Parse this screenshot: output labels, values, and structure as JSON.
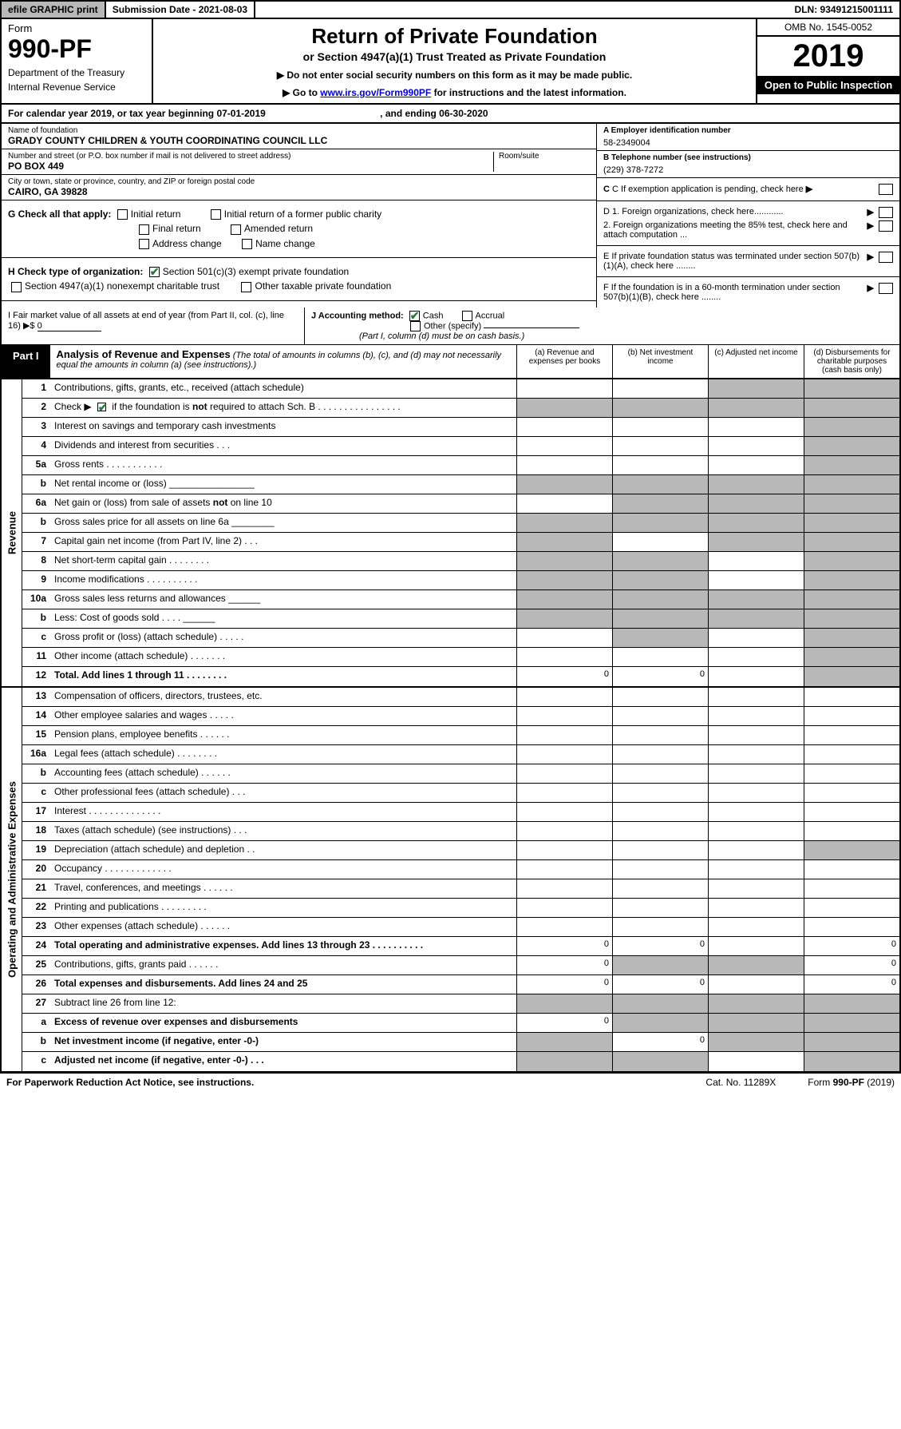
{
  "topbar": {
    "efile": "efile GRAPHIC print",
    "submission": "Submission Date - 2021-08-03",
    "dln": "DLN: 93491215001111"
  },
  "header": {
    "form": "Form",
    "formno": "990-PF",
    "dept": "Department of the Treasury",
    "irs": "Internal Revenue Service",
    "title": "Return of Private Foundation",
    "subtitle": "or Section 4947(a)(1) Trust Treated as Private Foundation",
    "note1": "▶ Do not enter social security numbers on this form as it may be made public.",
    "note2_pre": "▶ Go to ",
    "note2_link": "www.irs.gov/Form990PF",
    "note2_post": " for instructions and the latest information.",
    "omb": "OMB No. 1545-0052",
    "year": "2019",
    "open": "Open to Public Inspection"
  },
  "calyear": {
    "text": "For calendar year 2019, or tax year beginning 07-01-2019",
    "mid": ", and ending 06-30-2020"
  },
  "info": {
    "name_lbl": "Name of foundation",
    "name": "GRADY COUNTY CHILDREN & YOUTH COORDINATING COUNCIL LLC",
    "addr_lbl": "Number and street (or P.O. box number if mail is not delivered to street address)",
    "addr": "PO BOX 449",
    "room_lbl": "Room/suite",
    "city_lbl": "City or town, state or province, country, and ZIP or foreign postal code",
    "city": "CAIRO, GA  39828",
    "ein_lbl": "A Employer identification number",
    "ein": "58-2349004",
    "tel_lbl": "B Telephone number (see instructions)",
    "tel": "(229) 378-7272",
    "c": "C If exemption application is pending, check here",
    "d1": "D 1. Foreign organizations, check here............",
    "d2": "2. Foreign organizations meeting the 85% test, check here and attach computation ...",
    "e": "E  If private foundation status was terminated under section 507(b)(1)(A), check here ........",
    "f": "F  If the foundation is in a 60-month termination under section 507(b)(1)(B), check here ........"
  },
  "g": {
    "label": "G Check all that apply:",
    "opts": [
      "Initial return",
      "Initial return of a former public charity",
      "Final return",
      "Amended return",
      "Address change",
      "Name change"
    ]
  },
  "h": {
    "label": "H Check type of organization:",
    "o1": "Section 501(c)(3) exempt private foundation",
    "o2": "Section 4947(a)(1) nonexempt charitable trust",
    "o3": "Other taxable private foundation"
  },
  "i": {
    "label": "I Fair market value of all assets at end of year (from Part II, col. (c), line 16) ▶$ ",
    "val": "0"
  },
  "j": {
    "label": "J Accounting method:",
    "cash": "Cash",
    "accrual": "Accrual",
    "other": "Other (specify)",
    "note": "(Part I, column (d) must be on cash basis.)"
  },
  "part1": {
    "label": "Part I",
    "title": "Analysis of Revenue and Expenses",
    "sub": " (The total of amounts in columns (b), (c), and (d) may not necessarily equal the amounts in column (a) (see instructions).)",
    "cols": [
      "(a)    Revenue and expenses per books",
      "(b)   Net investment income",
      "(c)   Adjusted net income",
      "(d)   Disbursements for charitable purposes (cash basis only)"
    ]
  },
  "sections": {
    "revenue": "Revenue",
    "opex": "Operating and Administrative Expenses"
  },
  "rows_rev": [
    {
      "n": "1",
      "d": "Contributions, gifts, grants, etc., received (attach schedule)",
      "g": [
        0,
        0,
        1,
        1
      ]
    },
    {
      "n": "2",
      "d": "Check ▶ ☑ if the foundation is not required to attach Sch. B   .  .  .  .  .  .  .  .  .  .  .  .  .  .  .  .",
      "g": [
        1,
        1,
        1,
        1
      ]
    },
    {
      "n": "3",
      "d": "Interest on savings and temporary cash investments",
      "g": [
        0,
        0,
        0,
        1
      ]
    },
    {
      "n": "4",
      "d": "Dividends and interest from securities   .   .   .",
      "g": [
        0,
        0,
        0,
        1
      ]
    },
    {
      "n": "5a",
      "d": "Gross rents   .  .  .  .  .  .  .  .  .  .  .",
      "g": [
        0,
        0,
        0,
        1
      ]
    },
    {
      "n": "b",
      "d": "Net rental income or (loss)   ________________",
      "g": [
        1,
        1,
        1,
        1
      ]
    },
    {
      "n": "6a",
      "d": "Net gain or (loss) from sale of assets not on line 10",
      "g": [
        0,
        1,
        1,
        1
      ]
    },
    {
      "n": "b",
      "d": "Gross sales price for all assets on line 6a  ________",
      "g": [
        1,
        1,
        1,
        1
      ]
    },
    {
      "n": "7",
      "d": "Capital gain net income (from Part IV, line 2)   .   .   .",
      "g": [
        1,
        0,
        1,
        1
      ]
    },
    {
      "n": "8",
      "d": "Net short-term capital gain   .  .  .  .  .  .  .  .",
      "g": [
        1,
        1,
        0,
        1
      ]
    },
    {
      "n": "9",
      "d": "Income modifications  .  .  .  .  .  .  .  .  .  .",
      "g": [
        1,
        1,
        0,
        1
      ]
    },
    {
      "n": "10a",
      "d": "Gross sales less returns and allowances  ______",
      "g": [
        1,
        1,
        1,
        1
      ]
    },
    {
      "n": "b",
      "d": "Less: Cost of goods sold   .   .   .   .   ______",
      "g": [
        1,
        1,
        1,
        1
      ]
    },
    {
      "n": "c",
      "d": "Gross profit or (loss) (attach schedule)   .  .  .  .  .",
      "g": [
        0,
        1,
        0,
        1
      ]
    },
    {
      "n": "11",
      "d": "Other income (attach schedule)   .  .  .  .  .  .  .",
      "g": [
        0,
        0,
        0,
        1
      ]
    },
    {
      "n": "12",
      "d": "Total. Add lines 1 through 11   .  .  .  .  .  .  .  .",
      "bold": true,
      "v": [
        "0",
        "0",
        "",
        ""
      ],
      "g": [
        0,
        0,
        0,
        1
      ]
    }
  ],
  "rows_op": [
    {
      "n": "13",
      "d": "Compensation of officers, directors, trustees, etc.",
      "g": [
        0,
        0,
        0,
        0
      ]
    },
    {
      "n": "14",
      "d": "Other employee salaries and wages   .  .  .  .  .",
      "g": [
        0,
        0,
        0,
        0
      ]
    },
    {
      "n": "15",
      "d": "Pension plans, employee benefits   .  .  .  .  .  .",
      "g": [
        0,
        0,
        0,
        0
      ]
    },
    {
      "n": "16a",
      "d": "Legal fees (attach schedule)  .  .  .  .  .  .  .  .",
      "g": [
        0,
        0,
        0,
        0
      ]
    },
    {
      "n": "b",
      "d": "Accounting fees (attach schedule)   .  .  .  .  .  .",
      "g": [
        0,
        0,
        0,
        0
      ]
    },
    {
      "n": "c",
      "d": "Other professional fees (attach schedule)   .   .   .",
      "g": [
        0,
        0,
        0,
        0
      ]
    },
    {
      "n": "17",
      "d": "Interest   .  .  .  .  .  .  .  .  .  .  .  .  .  .",
      "g": [
        0,
        0,
        0,
        0
      ]
    },
    {
      "n": "18",
      "d": "Taxes (attach schedule) (see instructions)   .   .   .",
      "g": [
        0,
        0,
        0,
        0
      ]
    },
    {
      "n": "19",
      "d": "Depreciation (attach schedule) and depletion   .   .",
      "g": [
        0,
        0,
        0,
        1
      ]
    },
    {
      "n": "20",
      "d": "Occupancy  .  .  .  .  .  .  .  .  .  .  .  .  .",
      "g": [
        0,
        0,
        0,
        0
      ]
    },
    {
      "n": "21",
      "d": "Travel, conferences, and meetings   .  .  .  .  .  .",
      "g": [
        0,
        0,
        0,
        0
      ]
    },
    {
      "n": "22",
      "d": "Printing and publications   .  .  .  .  .  .  .  .  .",
      "g": [
        0,
        0,
        0,
        0
      ]
    },
    {
      "n": "23",
      "d": "Other expenses (attach schedule)   .  .  .  .  .  .",
      "g": [
        0,
        0,
        0,
        0
      ]
    },
    {
      "n": "24",
      "d": "Total operating and administrative expenses. Add lines 13 through 23   .  .  .  .  .  .  .  .  .  .",
      "bold": true,
      "v": [
        "0",
        "0",
        "",
        "0"
      ],
      "g": [
        0,
        0,
        0,
        0
      ]
    },
    {
      "n": "25",
      "d": "Contributions, gifts, grants paid   .  .  .  .  .  .",
      "v": [
        "0",
        "",
        "",
        "0"
      ],
      "g": [
        0,
        1,
        1,
        0
      ]
    },
    {
      "n": "26",
      "d": "Total expenses and disbursements. Add lines 24 and 25",
      "bold": true,
      "v": [
        "0",
        "0",
        "",
        "0"
      ],
      "g": [
        0,
        0,
        0,
        0
      ]
    },
    {
      "n": "27",
      "d": "Subtract line 26 from line 12:",
      "g": [
        1,
        1,
        1,
        1
      ]
    },
    {
      "n": "a",
      "d": "Excess of revenue over expenses and disbursements",
      "bold": true,
      "v": [
        "0",
        "",
        "",
        ""
      ],
      "g": [
        0,
        1,
        1,
        1
      ]
    },
    {
      "n": "b",
      "d": "Net investment income (if negative, enter -0-)",
      "bold": true,
      "v": [
        "",
        "0",
        "",
        ""
      ],
      "g": [
        1,
        0,
        1,
        1
      ]
    },
    {
      "n": "c",
      "d": "Adjusted net income (if negative, enter -0-)   .   .   .",
      "bold": true,
      "g": [
        1,
        1,
        0,
        1
      ]
    }
  ],
  "footer": {
    "left": "For Paperwork Reduction Act Notice, see instructions.",
    "mid": "Cat. No. 11289X",
    "right": "Form 990-PF (2019)"
  },
  "colors": {
    "grey": "#b8b8b8",
    "link": "#0000cc",
    "check": "#2a7a3a"
  }
}
